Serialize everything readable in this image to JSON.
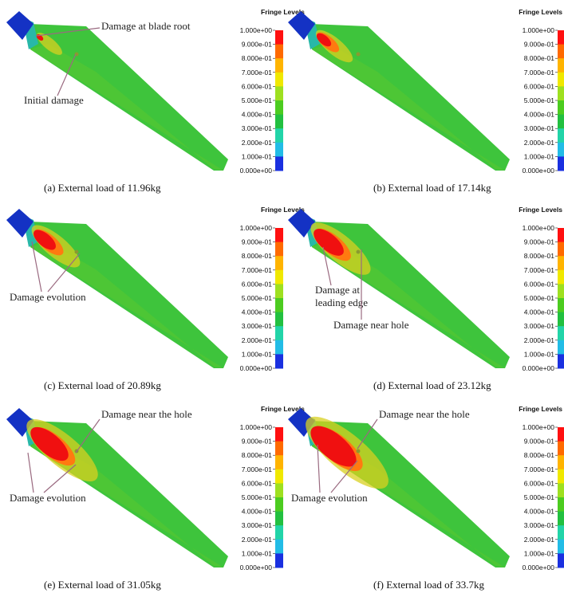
{
  "panels": [
    {
      "caption": "(a)   External load of 11.96kg",
      "legend_title": "Fringe Levels",
      "levels": [
        "1.000e+00",
        "9.000e-01",
        "8.000e-01",
        "7.000e-01",
        "6.000e-01",
        "5.000e-01",
        "4.000e-01",
        "3.000e-01",
        "2.000e-01",
        "1.000e-01",
        "0.000e+00"
      ],
      "annotations": [
        {
          "lines": [
            "Damage at blade root"
          ]
        },
        {
          "lines": [
            "Initial damage"
          ]
        }
      ]
    },
    {
      "caption": "(b) External load of 17.14kg",
      "legend_title": "Fringe Levels",
      "levels": [
        "1.000e+00",
        "9.000e-01",
        "8.000e-01",
        "7.000e-01",
        "6.000e-01",
        "5.000e-01",
        "4.000e-01",
        "3.000e-01",
        "2.000e-01",
        "1.000e-01",
        "0.000e+00"
      ],
      "annotations": []
    },
    {
      "caption": "(c) External load of 20.89kg",
      "legend_title": "Fringe Levels",
      "levels": [
        "1.000e+00",
        "9.000e-01",
        "8.000e-01",
        "7.000e-01",
        "6.000e-01",
        "5.000e-01",
        "4.000e-01",
        "3.000e-01",
        "2.000e-01",
        "1.000e-01",
        "0.000e+00"
      ],
      "annotations": [
        {
          "lines": [
            "Damage evolution"
          ]
        }
      ]
    },
    {
      "caption": "(d) External load of 23.12kg",
      "legend_title": "Fringe Levels",
      "levels": [
        "1.000e+00",
        "9.000e-01",
        "8.000e-01",
        "7.000e-01",
        "6.000e-01",
        "5.000e-01",
        "4.000e-01",
        "3.000e-01",
        "2.000e-01",
        "1.000e-01",
        "0.000e+00"
      ],
      "annotations": [
        {
          "lines": [
            "Damage at",
            "leading edge"
          ]
        },
        {
          "lines": [
            "Damage near hole"
          ]
        }
      ]
    },
    {
      "caption": "(e) External load of 31.05kg",
      "legend_title": "Fringe Levels",
      "levels": [
        "1.000e+00",
        "9.000e-01",
        "8.000e-01",
        "7.000e-01",
        "6.000e-01",
        "5.000e-01",
        "4.000e-01",
        "3.000e-01",
        "2.000e-01",
        "1.000e-01",
        "0.000e+00"
      ],
      "annotations": [
        {
          "lines": [
            "Damage near the hole"
          ]
        },
        {
          "lines": [
            "Damage evolution"
          ]
        }
      ]
    },
    {
      "caption": "(f) External load of 33.7kg",
      "legend_title": "Fringe Levels",
      "levels": [
        "1.000e+00",
        "9.000e-01",
        "8.000e-01",
        "7.000e-01",
        "6.000e-01",
        "5.000e-01",
        "4.000e-01",
        "3.000e-01",
        "2.000e-01",
        "1.000e-01",
        "0.000e+00"
      ],
      "annotations": [
        {
          "lines": [
            "Damage near the hole"
          ]
        },
        {
          "lines": [
            "Damage evolution"
          ]
        }
      ]
    }
  ]
}
